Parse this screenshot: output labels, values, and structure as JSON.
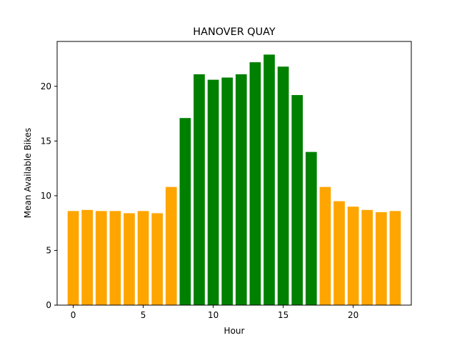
{
  "chart_data": {
    "type": "bar",
    "title": "HANOVER QUAY",
    "xlabel": "Hour",
    "ylabel": "Mean Available Bikes",
    "x": [
      0,
      1,
      2,
      3,
      4,
      5,
      6,
      7,
      8,
      9,
      10,
      11,
      12,
      13,
      14,
      15,
      16,
      17,
      18,
      19,
      20,
      21,
      22,
      23
    ],
    "values": [
      8.6,
      8.7,
      8.6,
      8.6,
      8.4,
      8.6,
      8.4,
      10.8,
      17.1,
      21.1,
      20.6,
      20.8,
      21.1,
      22.2,
      22.9,
      21.8,
      19.2,
      14.0,
      10.8,
      9.5,
      9.0,
      8.7,
      8.5,
      8.6
    ],
    "bar_colors": [
      "#FFA500",
      "#FFA500",
      "#FFA500",
      "#FFA500",
      "#FFA500",
      "#FFA500",
      "#FFA500",
      "#FFA500",
      "#008000",
      "#008000",
      "#008000",
      "#008000",
      "#008000",
      "#008000",
      "#008000",
      "#008000",
      "#008000",
      "#008000",
      "#FFA500",
      "#FFA500",
      "#FFA500",
      "#FFA500",
      "#FFA500",
      "#FFA500"
    ],
    "xticks": [
      0,
      5,
      10,
      15,
      20
    ],
    "yticks": [
      0,
      5,
      10,
      15,
      20
    ],
    "xlim": [
      -1.15,
      24.15
    ],
    "ylim": [
      0,
      24.1
    ],
    "grid": false,
    "legend": "none"
  }
}
